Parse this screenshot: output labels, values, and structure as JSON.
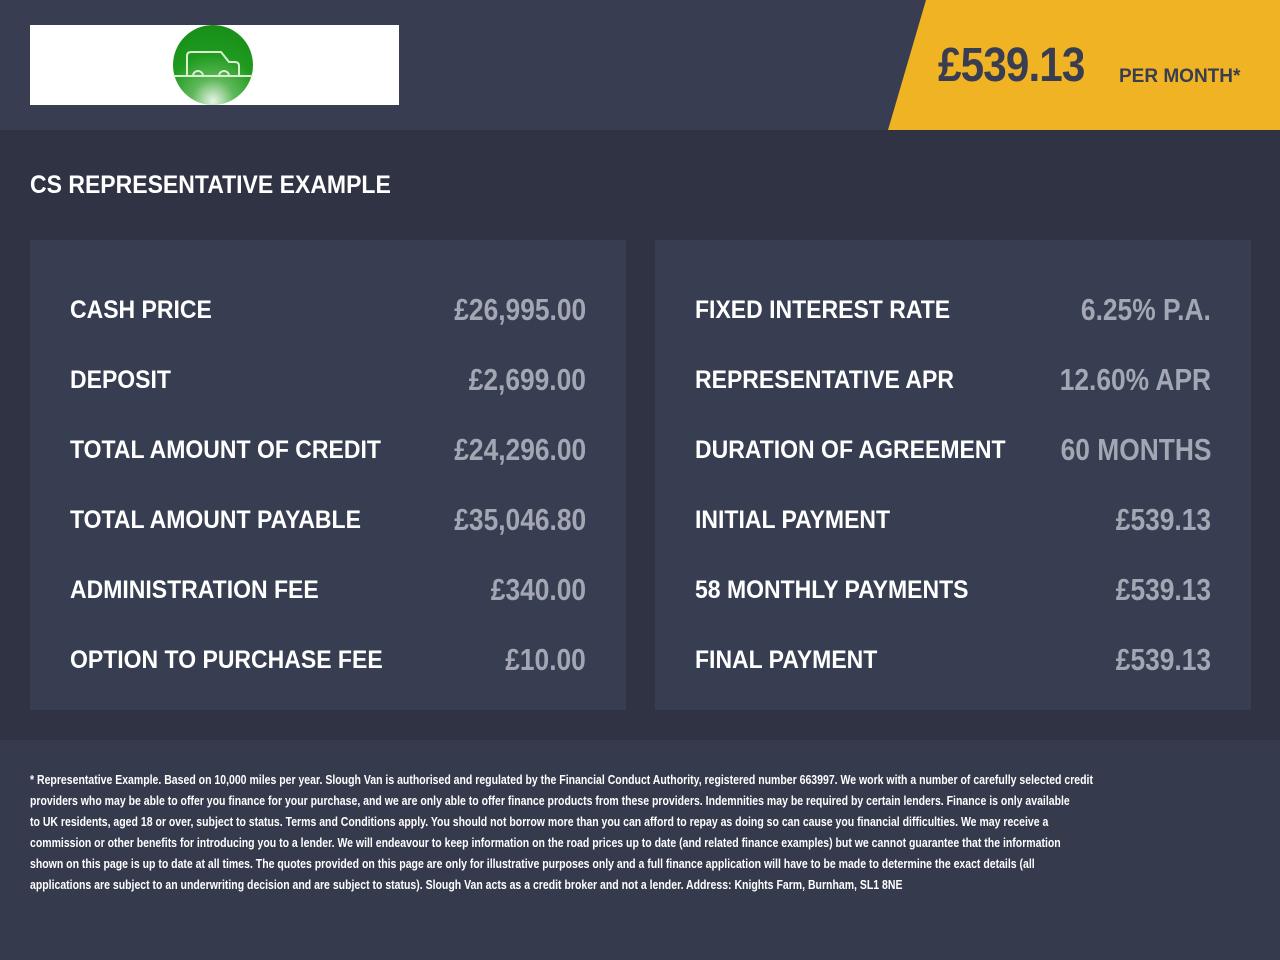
{
  "header": {
    "logo_alt": "Slough Van",
    "price": "£539.13",
    "per_month": "PER MONTH*",
    "accent": "#f0b323"
  },
  "title": "CS REPRESENTATIVE EXAMPLE",
  "left": [
    {
      "label": "CASH PRICE",
      "value": "£26,995.00"
    },
    {
      "label": "DEPOSIT",
      "value": "£2,699.00"
    },
    {
      "label": "TOTAL AMOUNT OF CREDIT",
      "value": "£24,296.00"
    },
    {
      "label": "TOTAL AMOUNT PAYABLE",
      "value": "£35,046.80"
    },
    {
      "label": "ADMINISTRATION FEE",
      "value": "£340.00"
    },
    {
      "label": "OPTION TO PURCHASE FEE",
      "value": "£10.00"
    }
  ],
  "right": [
    {
      "label": "FIXED INTEREST RATE",
      "value": "6.25% P.A."
    },
    {
      "label": "REPRESENTATIVE APR",
      "value": "12.60% APR"
    },
    {
      "label": "DURATION OF AGREEMENT",
      "value": "60 MONTHS"
    },
    {
      "label": "INITIAL PAYMENT",
      "value": "£539.13"
    },
    {
      "label": "58 MONTHLY PAYMENTS",
      "value": "£539.13"
    },
    {
      "label": "FINAL PAYMENT",
      "value": "£539.13"
    }
  ],
  "footer": [
    "* Representative Example. Based on 10,000 miles per year. Slough Van is authorised and regulated by the Financial Conduct Authority, registered number 663997. We work with a number of carefully selected credit",
    "providers who may be able to offer you finance for your purchase, and we are only able to offer finance products from these providers. Indemnities may be required by certain lenders. Finance is only available",
    "to UK residents, aged 18 or over, subject to status. Terms and Conditions apply. You should not borrow more than you can afford to repay as doing so can cause you financial difficulties. We may receive a",
    "commission or other benefits for introducing you to a lender. We will endeavour to keep information on the road prices up to date (and related finance examples) but we cannot guarantee that the information",
    "shown on this page is up to date at all times. The quotes provided on this page are only for illustrative purposes only and a full finance application will have to be made to determine the exact details (all",
    "applications are subject to an underwriting decision and are subject to status). Slough Van acts as a credit broker and not a lender. Address: Knights Farm, Burnham, SL1 8NE"
  ]
}
